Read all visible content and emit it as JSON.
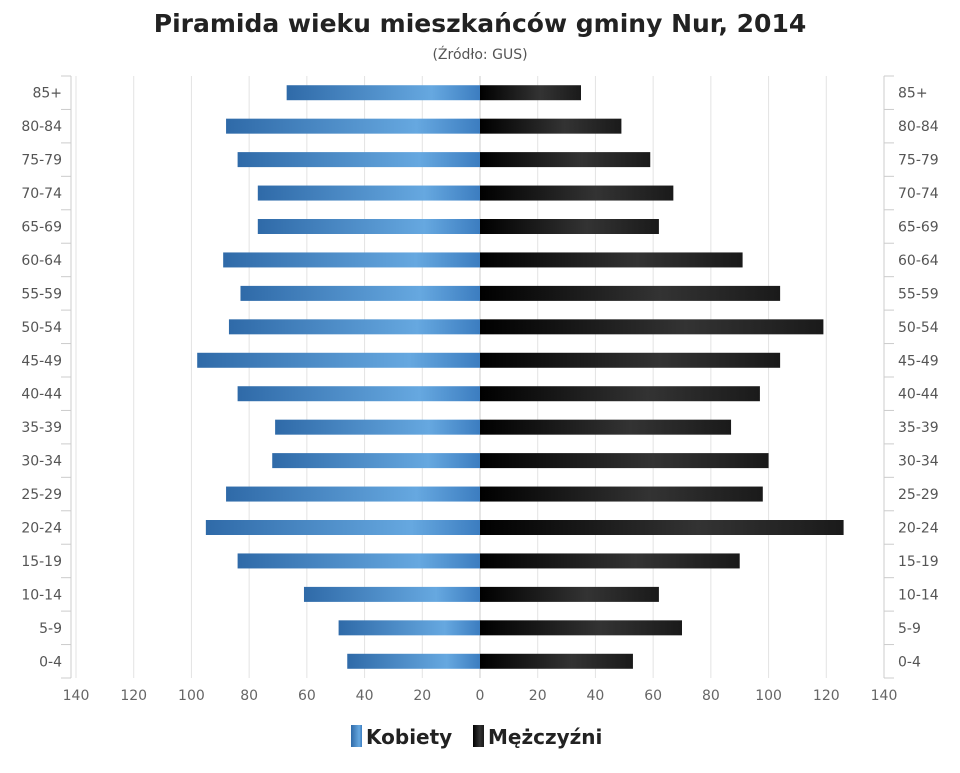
{
  "chart_data": {
    "type": "bar",
    "orientation": "horizontal-pyramid",
    "title": "Piramida wieku mieszkańców gminy Nur, 2014",
    "subtitle": "(Źródło: GUS)",
    "categories": [
      "85+",
      "80-84",
      "75-79",
      "70-74",
      "65-69",
      "60-64",
      "55-59",
      "50-54",
      "45-49",
      "40-44",
      "35-39",
      "30-34",
      "25-29",
      "20-24",
      "15-19",
      "10-14",
      "5-9",
      "0-4"
    ],
    "series": [
      {
        "name": "Kobiety",
        "side": "left",
        "color": "#3f7fc0",
        "values": [
          67,
          88,
          84,
          77,
          77,
          89,
          83,
          87,
          98,
          84,
          71,
          72,
          88,
          95,
          84,
          61,
          49,
          46
        ]
      },
      {
        "name": "Mężczyźni",
        "side": "right",
        "color": "#1a1a1a",
        "values": [
          35,
          49,
          59,
          67,
          62,
          91,
          104,
          119,
          104,
          97,
          87,
          100,
          98,
          126,
          90,
          62,
          70,
          53
        ]
      }
    ],
    "xticks": [
      "140",
      "120",
      "100",
      "80",
      "60",
      "40",
      "20",
      "0",
      "20",
      "40",
      "60",
      "80",
      "100",
      "120",
      "140"
    ],
    "xlim": [
      -140,
      140
    ],
    "grid": true,
    "legend": "bottom-center"
  }
}
